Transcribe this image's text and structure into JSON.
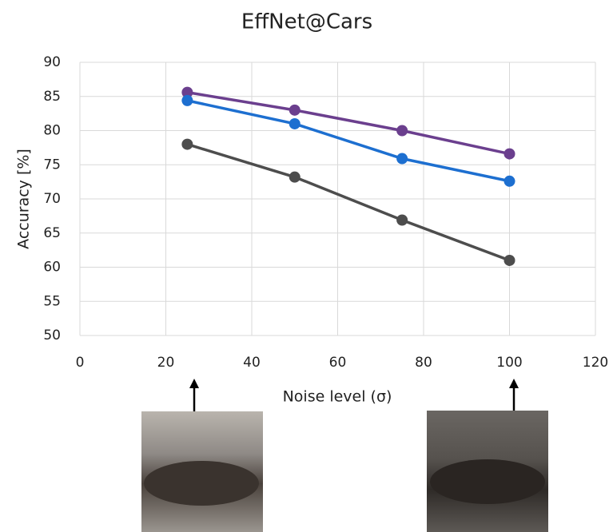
{
  "chart_data": {
    "type": "line",
    "title": "EffNet@Cars",
    "x_label": "Noise level (σ)",
    "y_label": "Accuracy [%]",
    "x": [
      25,
      50,
      75,
      100
    ],
    "series": [
      {
        "color": "#6b3f8e",
        "values": [
          85.6,
          83,
          80,
          76.6
        ]
      },
      {
        "color": "#1d6fd0",
        "values": [
          84.4,
          81,
          75.9,
          72.6
        ]
      },
      {
        "color": "#4d4d4d",
        "values": [
          78,
          73.2,
          66.9,
          61
        ]
      }
    ],
    "xlim": [
      0,
      120
    ],
    "xticks": [
      0,
      20,
      40,
      60,
      80,
      100,
      120
    ],
    "ylim": [
      50,
      90
    ],
    "yticks": [
      50,
      55,
      60,
      65,
      70,
      75,
      80,
      85,
      90
    ],
    "grid": true
  }
}
